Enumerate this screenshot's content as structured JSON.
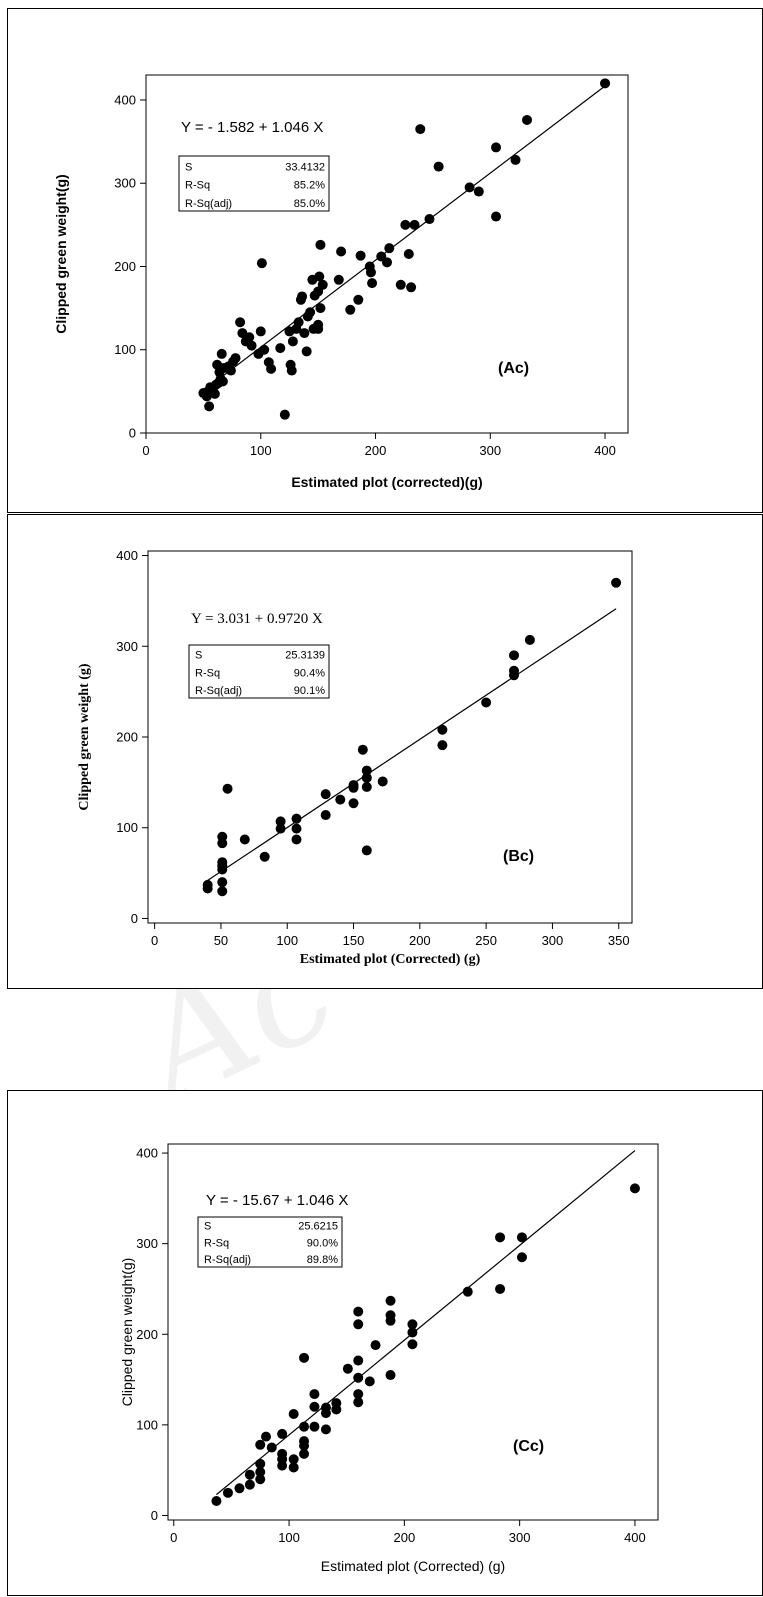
{
  "chart_data": [
    {
      "type": "scatter",
      "panel_label": "(Ac)",
      "equation": "Y =  - 1.582 + 1.046 X",
      "stats": [
        {
          "label": "S",
          "value": "33.4132"
        },
        {
          "label": "R-Sq",
          "value": "85.2%"
        },
        {
          "label": "R-Sq(adj)",
          "value": "85.0%"
        }
      ],
      "xlabel": "Estimated plot (corrected)(g)",
      "ylabel": "Clipped green weight(g)",
      "xlim": [
        0,
        420
      ],
      "ylim": [
        0,
        430
      ],
      "xticks": [
        0,
        100,
        200,
        300,
        400
      ],
      "yticks": [
        0,
        100,
        200,
        300,
        400
      ],
      "grid": false,
      "fit": {
        "intercept": -1.582,
        "slope": 1.046,
        "x_range": [
          50,
          400
        ]
      },
      "points": [
        [
          50,
          48
        ],
        [
          53,
          44
        ],
        [
          54,
          50
        ],
        [
          55,
          32
        ],
        [
          56,
          55
        ],
        [
          58,
          52
        ],
        [
          60,
          47
        ],
        [
          61,
          58
        ],
        [
          62,
          82
        ],
        [
          63,
          60
        ],
        [
          64,
          73
        ],
        [
          65,
          65
        ],
        [
          66,
          95
        ],
        [
          67,
          62
        ],
        [
          68,
          78
        ],
        [
          72,
          80
        ],
        [
          74,
          75
        ],
        [
          76,
          86
        ],
        [
          78,
          90
        ],
        [
          82,
          133
        ],
        [
          84,
          120
        ],
        [
          87,
          110
        ],
        [
          90,
          115
        ],
        [
          92,
          105
        ],
        [
          98,
          95
        ],
        [
          100,
          122
        ],
        [
          101,
          204
        ],
        [
          103,
          100
        ],
        [
          107,
          85
        ],
        [
          109,
          77
        ],
        [
          117,
          102
        ],
        [
          121,
          22
        ],
        [
          125,
          122
        ],
        [
          126,
          82
        ],
        [
          127,
          75
        ],
        [
          128,
          110
        ],
        [
          131,
          125
        ],
        [
          133,
          133
        ],
        [
          135,
          160
        ],
        [
          136,
          164
        ],
        [
          138,
          120
        ],
        [
          140,
          98
        ],
        [
          141,
          140
        ],
        [
          143,
          145
        ],
        [
          145,
          184
        ],
        [
          146,
          125
        ],
        [
          147,
          165
        ],
        [
          150,
          130
        ],
        [
          150,
          125
        ],
        [
          150,
          170
        ],
        [
          151,
          188
        ],
        [
          152,
          150
        ],
        [
          152,
          226
        ],
        [
          154,
          178
        ],
        [
          168,
          184
        ],
        [
          170,
          218
        ],
        [
          178,
          148
        ],
        [
          185,
          160
        ],
        [
          187,
          213
        ],
        [
          195,
          200
        ],
        [
          196,
          193
        ],
        [
          197,
          180
        ],
        [
          205,
          212
        ],
        [
          210,
          205
        ],
        [
          212,
          222
        ],
        [
          222,
          178
        ],
        [
          226,
          250
        ],
        [
          229,
          215
        ],
        [
          231,
          175
        ],
        [
          234,
          250
        ],
        [
          239,
          365
        ],
        [
          247,
          257
        ],
        [
          255,
          320
        ],
        [
          282,
          295
        ],
        [
          290,
          290
        ],
        [
          305,
          343
        ],
        [
          305,
          260
        ],
        [
          322,
          328
        ],
        [
          332,
          376
        ],
        [
          400,
          420
        ]
      ]
    },
    {
      "type": "scatter",
      "panel_label": "(Bc)",
      "equation": "Y = 3.031 + 0.9720  X",
      "stats": [
        {
          "label": "S",
          "value": "25.3139"
        },
        {
          "label": "R-Sq",
          "value": "90.4%"
        },
        {
          "label": "R-Sq(adj)",
          "value": "90.1%"
        }
      ],
      "xlabel": "Estimated plot (Corrected) (g)",
      "ylabel": "Clipped green weight (g)",
      "xlim": [
        -5,
        360
      ],
      "ylim": [
        -5,
        405
      ],
      "xticks": [
        0,
        50,
        100,
        150,
        200,
        250,
        300,
        350
      ],
      "yticks": [
        0,
        100,
        200,
        300,
        400
      ],
      "grid": false,
      "fit": {
        "intercept": 3.031,
        "slope": 0.972,
        "x_range": [
          40,
          348
        ]
      },
      "points": [
        [
          40,
          37
        ],
        [
          40,
          33
        ],
        [
          51,
          90
        ],
        [
          51,
          83
        ],
        [
          51,
          62
        ],
        [
          51,
          58
        ],
        [
          51,
          54
        ],
        [
          51,
          40
        ],
        [
          51,
          30
        ],
        [
          55,
          143
        ],
        [
          68,
          87
        ],
        [
          83,
          68
        ],
        [
          95,
          107
        ],
        [
          95,
          99
        ],
        [
          107,
          110
        ],
        [
          107,
          99
        ],
        [
          107,
          87
        ],
        [
          129,
          137
        ],
        [
          129,
          114
        ],
        [
          140,
          131
        ],
        [
          150,
          147
        ],
        [
          150,
          144
        ],
        [
          150,
          127
        ],
        [
          157,
          186
        ],
        [
          160,
          163
        ],
        [
          160,
          155
        ],
        [
          160,
          145
        ],
        [
          160,
          75
        ],
        [
          172,
          151
        ],
        [
          217,
          208
        ],
        [
          217,
          191
        ],
        [
          250,
          238
        ],
        [
          271,
          290
        ],
        [
          271,
          273
        ],
        [
          271,
          268
        ],
        [
          283,
          307
        ],
        [
          348,
          370
        ]
      ]
    },
    {
      "type": "scatter",
      "panel_label": "(Cc)",
      "equation": "Y =  - 15.67 + 1.046 X",
      "stats": [
        {
          "label": "S",
          "value": "25.6215"
        },
        {
          "label": "R-Sq",
          "value": "90.0%"
        },
        {
          "label": "R-Sq(adj)",
          "value": "89.8%"
        }
      ],
      "xlabel": "Estimated plot (Corrected) (g)",
      "ylabel": "Clipped green weight(g)",
      "xlim": [
        -5,
        420
      ],
      "ylim": [
        -5,
        410
      ],
      "xticks": [
        0,
        100,
        200,
        300,
        400
      ],
      "yticks": [
        0,
        100,
        200,
        300,
        400
      ],
      "grid": false,
      "fit": {
        "intercept": -15.67,
        "slope": 1.046,
        "x_range": [
          37,
          400
        ]
      },
      "points": [
        [
          37,
          16
        ],
        [
          47,
          25
        ],
        [
          57,
          30
        ],
        [
          66,
          34
        ],
        [
          66,
          45
        ],
        [
          75,
          40
        ],
        [
          75,
          48
        ],
        [
          75,
          57
        ],
        [
          75,
          78
        ],
        [
          80,
          87
        ],
        [
          85,
          75
        ],
        [
          94,
          55
        ],
        [
          94,
          62
        ],
        [
          94,
          68
        ],
        [
          94,
          90
        ],
        [
          104,
          53
        ],
        [
          104,
          62
        ],
        [
          104,
          112
        ],
        [
          113,
          68
        ],
        [
          113,
          77
        ],
        [
          113,
          82
        ],
        [
          113,
          98
        ],
        [
          113,
          174
        ],
        [
          122,
          98
        ],
        [
          122,
          120
        ],
        [
          122,
          134
        ],
        [
          132,
          95
        ],
        [
          132,
          113
        ],
        [
          132,
          119
        ],
        [
          141,
          117
        ],
        [
          141,
          124
        ],
        [
          151,
          162
        ],
        [
          160,
          125
        ],
        [
          160,
          134
        ],
        [
          160,
          152
        ],
        [
          160,
          171
        ],
        [
          160,
          211
        ],
        [
          160,
          225
        ],
        [
          170,
          148
        ],
        [
          175,
          188
        ],
        [
          188,
          155
        ],
        [
          188,
          215
        ],
        [
          188,
          221
        ],
        [
          188,
          237
        ],
        [
          207,
          189
        ],
        [
          207,
          202
        ],
        [
          207,
          211
        ],
        [
          255,
          247
        ],
        [
          283,
          250
        ],
        [
          283,
          307
        ],
        [
          302,
          285
        ],
        [
          302,
          307
        ],
        [
          400,
          361
        ]
      ]
    }
  ]
}
